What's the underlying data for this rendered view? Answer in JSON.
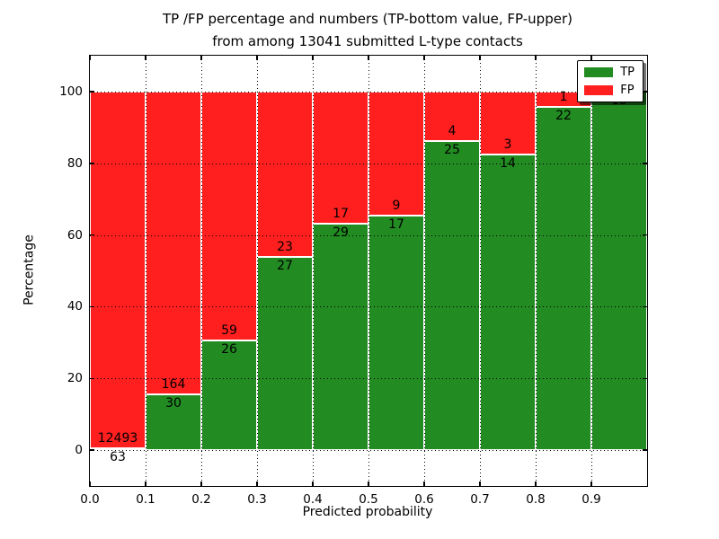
{
  "title": {
    "line1": "TP /FP percentage and numbers (TP-bottom value, FP-upper)",
    "line2": "from among 13041 submitted L-type contacts"
  },
  "axes": {
    "xlabel": "Predicted probability",
    "ylabel": "Percentage",
    "ytick_labels": [
      "0",
      "20",
      "40",
      "60",
      "80",
      "100"
    ],
    "ytick_values": [
      0,
      20,
      40,
      60,
      80,
      100
    ],
    "xtick_labels": [
      "0.0",
      "0.1",
      "0.2",
      "0.3",
      "0.4",
      "0.5",
      "0.6",
      "0.7",
      "0.8",
      "0.9"
    ],
    "xtick_values": [
      0,
      0.1,
      0.2,
      0.3,
      0.4,
      0.5,
      0.6,
      0.7,
      0.8,
      0.9
    ]
  },
  "legend": {
    "position": "upper right",
    "items": [
      {
        "label": "TP",
        "color": "#228b22"
      },
      {
        "label": "FP",
        "color": "#ff1f1f"
      }
    ]
  },
  "chart_data": {
    "type": "bar",
    "stacked": true,
    "title": "TP /FP percentage and numbers (TP-bottom value, FP-upper) from among 13041 submitted L-type contacts",
    "xlabel": "Predicted probability",
    "ylabel": "Percentage",
    "xlim": [
      0,
      1.0
    ],
    "ylim": [
      -10,
      110
    ],
    "grid": "dotted",
    "bar_bin_width": 0.1,
    "bin_starts": [
      0.0,
      0.1,
      0.2,
      0.3,
      0.4,
      0.5,
      0.6,
      0.7,
      0.8,
      0.9
    ],
    "series": [
      {
        "name": "TP",
        "color": "#228b22",
        "values": [
          63,
          30,
          26,
          27,
          29,
          17,
          25,
          14,
          22,
          15
        ]
      },
      {
        "name": "FP",
        "color": "#ff1f1f",
        "values": [
          12493,
          164,
          59,
          23,
          17,
          9,
          4,
          3,
          1,
          0
        ]
      }
    ],
    "tp_percent_of_bin": [
      0.5,
      15.5,
      30.6,
      54.0,
      63.0,
      65.4,
      86.2,
      82.4,
      95.7,
      100.0
    ],
    "total_contacts": 13041,
    "value_label_rule": "TP count printed below green/red boundary, FP count printed above it"
  }
}
